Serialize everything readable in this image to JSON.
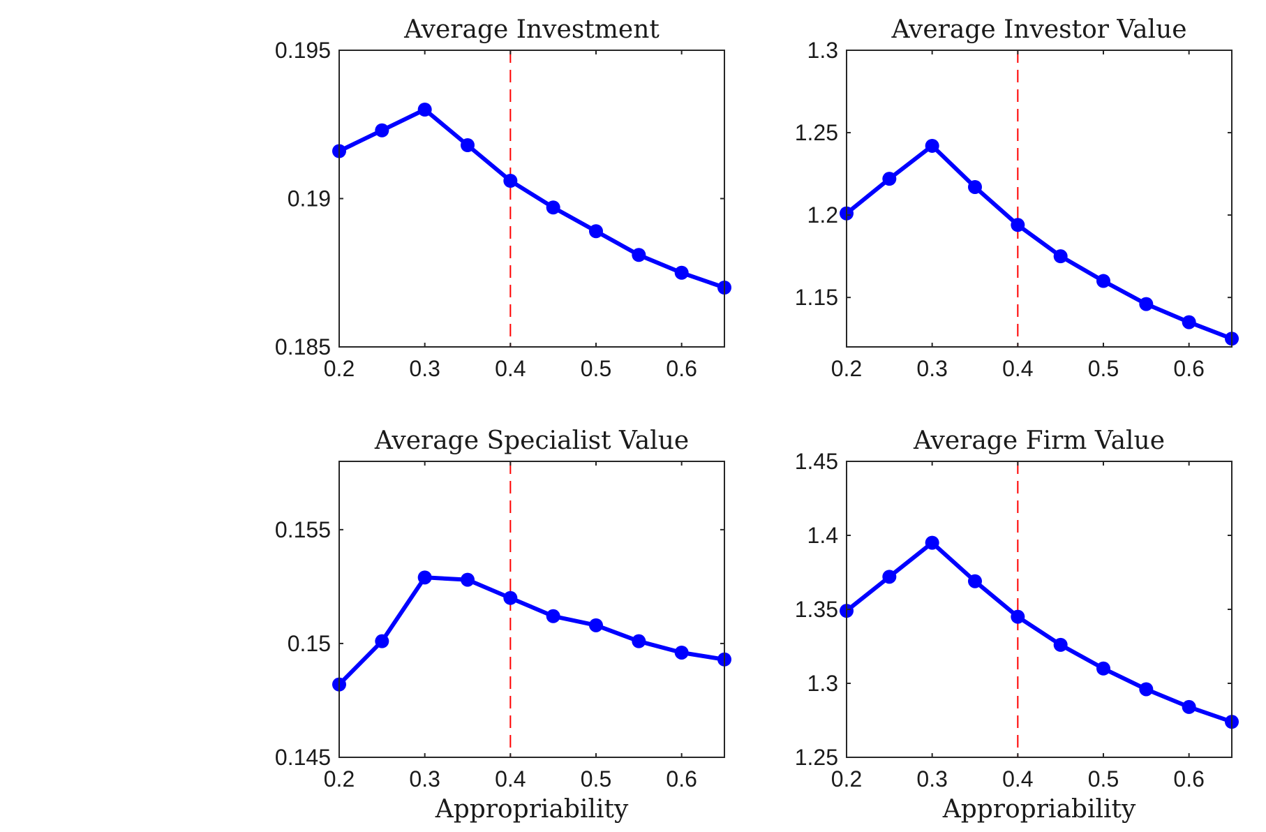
{
  "figure": {
    "colors": {
      "line": "#0000ff",
      "marker": "#0000ff",
      "reference_line": "#ff0000",
      "axes": "#262626",
      "background": "#ffffff"
    },
    "reference_line_style": "dashed"
  },
  "chart_data": [
    {
      "type": "line",
      "title": "Average Investment",
      "xlabel": "",
      "ylabel": "",
      "x": [
        0.2,
        0.25,
        0.3,
        0.35,
        0.4,
        0.45,
        0.5,
        0.55,
        0.6,
        0.65
      ],
      "series": [
        {
          "values": [
            0.1916,
            0.1923,
            0.193,
            0.1918,
            0.1906,
            0.1897,
            0.1889,
            0.1881,
            0.1875,
            0.187
          ]
        }
      ],
      "xlim": [
        0.2,
        0.65
      ],
      "ylim": [
        0.185,
        0.195
      ],
      "xticks": [
        0.2,
        0.3,
        0.4,
        0.5,
        0.6
      ],
      "xtick_labels": [
        "0.2",
        "0.3",
        "0.4",
        "0.5",
        "0.6"
      ],
      "yticks": [
        0.185,
        0.19,
        0.195
      ],
      "ytick_labels": [
        "0.185",
        "0.19",
        "0.195"
      ],
      "vline": 0.4,
      "grid": false
    },
    {
      "type": "line",
      "title": "Average Investor Value",
      "xlabel": "",
      "ylabel": "",
      "x": [
        0.2,
        0.25,
        0.3,
        0.35,
        0.4,
        0.45,
        0.5,
        0.55,
        0.6,
        0.65
      ],
      "series": [
        {
          "values": [
            1.201,
            1.222,
            1.242,
            1.217,
            1.194,
            1.175,
            1.16,
            1.146,
            1.135,
            1.125
          ]
        }
      ],
      "xlim": [
        0.2,
        0.65
      ],
      "ylim": [
        1.12,
        1.3
      ],
      "xticks": [
        0.2,
        0.3,
        0.4,
        0.5,
        0.6
      ],
      "xtick_labels": [
        "0.2",
        "0.3",
        "0.4",
        "0.5",
        "0.6"
      ],
      "yticks": [
        1.15,
        1.2,
        1.25,
        1.3
      ],
      "ytick_labels": [
        "1.15",
        "1.2",
        "1.25",
        "1.3"
      ],
      "vline": 0.4,
      "grid": false
    },
    {
      "type": "line",
      "title": "Average Specialist Value",
      "xlabel": "Appropriability",
      "ylabel": "",
      "x": [
        0.2,
        0.25,
        0.3,
        0.35,
        0.4,
        0.45,
        0.5,
        0.55,
        0.6,
        0.65
      ],
      "series": [
        {
          "values": [
            0.1482,
            0.1501,
            0.1529,
            0.1528,
            0.152,
            0.1512,
            0.1508,
            0.1501,
            0.1496,
            0.1493
          ]
        }
      ],
      "xlim": [
        0.2,
        0.65
      ],
      "ylim": [
        0.145,
        0.158
      ],
      "xticks": [
        0.2,
        0.3,
        0.4,
        0.5,
        0.6
      ],
      "xtick_labels": [
        "0.2",
        "0.3",
        "0.4",
        "0.5",
        "0.6"
      ],
      "yticks": [
        0.145,
        0.15,
        0.155
      ],
      "ytick_labels": [
        "0.145",
        "0.15",
        "0.155"
      ],
      "vline": 0.4,
      "grid": false
    },
    {
      "type": "line",
      "title": "Average Firm Value",
      "xlabel": "Appropriability",
      "ylabel": "",
      "x": [
        0.2,
        0.25,
        0.3,
        0.35,
        0.4,
        0.45,
        0.5,
        0.55,
        0.6,
        0.65
      ],
      "series": [
        {
          "values": [
            1.349,
            1.372,
            1.395,
            1.369,
            1.345,
            1.326,
            1.31,
            1.296,
            1.284,
            1.274
          ]
        }
      ],
      "xlim": [
        0.2,
        0.65
      ],
      "ylim": [
        1.25,
        1.45
      ],
      "xticks": [
        0.2,
        0.3,
        0.4,
        0.5,
        0.6
      ],
      "xtick_labels": [
        "0.2",
        "0.3",
        "0.4",
        "0.5",
        "0.6"
      ],
      "yticks": [
        1.25,
        1.3,
        1.35,
        1.4,
        1.45
      ],
      "ytick_labels": [
        "1.25",
        "1.3",
        "1.35",
        "1.4",
        "1.45"
      ],
      "vline": 0.4,
      "grid": false
    }
  ]
}
